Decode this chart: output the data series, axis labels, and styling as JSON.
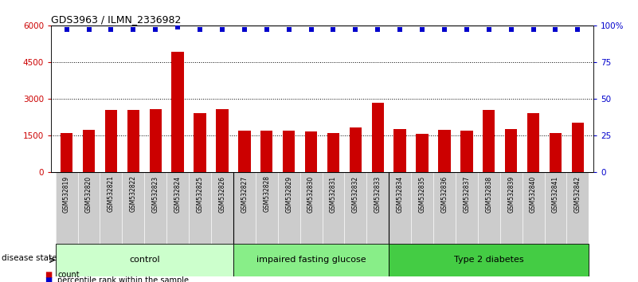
{
  "title": "GDS3963 / ILMN_2336982",
  "samples": [
    "GSM532819",
    "GSM532820",
    "GSM532821",
    "GSM532822",
    "GSM532823",
    "GSM532824",
    "GSM532825",
    "GSM532826",
    "GSM532827",
    "GSM532828",
    "GSM532829",
    "GSM532830",
    "GSM532831",
    "GSM532832",
    "GSM532833",
    "GSM532834",
    "GSM532835",
    "GSM532836",
    "GSM532837",
    "GSM532838",
    "GSM532839",
    "GSM532840",
    "GSM532841",
    "GSM532842"
  ],
  "bar_values": [
    1580,
    1730,
    2530,
    2530,
    2560,
    4920,
    2420,
    2560,
    1680,
    1700,
    1700,
    1650,
    1590,
    1830,
    2820,
    1760,
    1560,
    1730,
    1680,
    2530,
    1760,
    2420,
    1610,
    2030
  ],
  "percentile_values": [
    97,
    97,
    97,
    97,
    97,
    99,
    97,
    97,
    97,
    97,
    97,
    97,
    97,
    97,
    97,
    97,
    97,
    97,
    97,
    97,
    97,
    97,
    97,
    97
  ],
  "bar_color": "#cc0000",
  "dot_color": "#0000cc",
  "ylim_left": [
    0,
    6000
  ],
  "ylim_right": [
    0,
    100
  ],
  "yticks_left": [
    0,
    1500,
    3000,
    4500,
    6000
  ],
  "yticks_right": [
    0,
    25,
    50,
    75,
    100
  ],
  "grid_values": [
    1500,
    3000,
    4500
  ],
  "groups": [
    {
      "label": "control",
      "start": 0,
      "end": 7,
      "color": "#ccffcc"
    },
    {
      "label": "impaired fasting glucose",
      "start": 8,
      "end": 14,
      "color": "#88ee88"
    },
    {
      "label": "Type 2 diabetes",
      "start": 15,
      "end": 23,
      "color": "#44cc44"
    }
  ],
  "group_boundaries": [
    7.5,
    14.5
  ],
  "disease_state_label": "disease state",
  "legend_count_label": "count",
  "legend_percentile_label": "percentile rank within the sample",
  "bar_width": 0.55,
  "xticklabel_bg": "#cccccc",
  "fig_bg": "#ffffff"
}
